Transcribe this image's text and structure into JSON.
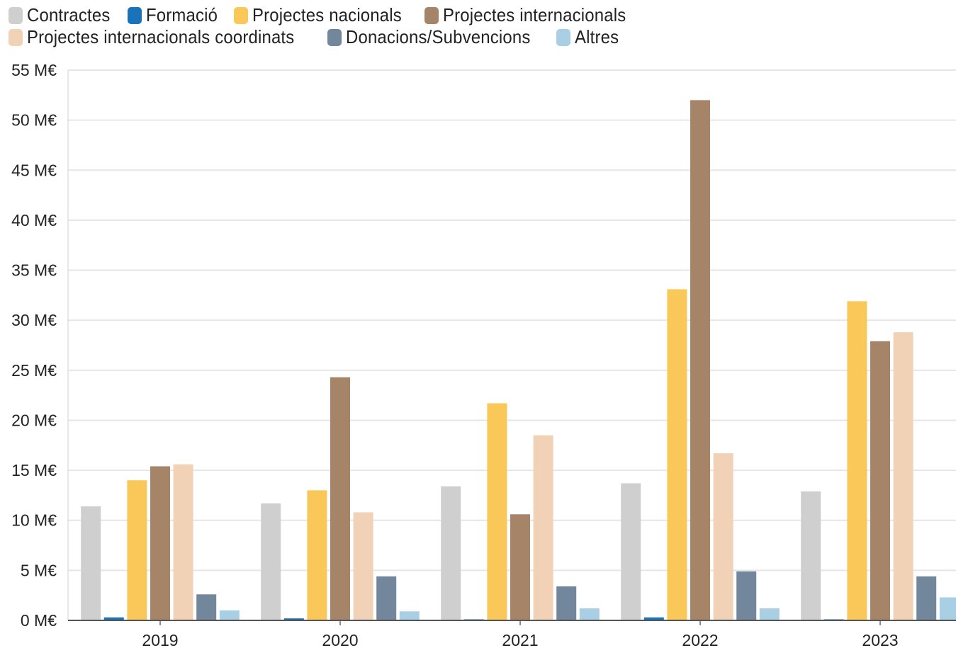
{
  "chart_data": {
    "type": "bar",
    "categories": [
      "2019",
      "2020",
      "2021",
      "2022",
      "2023"
    ],
    "series": [
      {
        "name": "Contractes",
        "color": "#cfcfcf",
        "values": [
          11.4,
          11.7,
          13.4,
          13.7,
          12.9
        ]
      },
      {
        "name": "Formació",
        "color": "#1a73b8",
        "values": [
          0.3,
          0.2,
          0.1,
          0.3,
          0.1
        ]
      },
      {
        "name": "Projectes nacionals",
        "color": "#f9c859",
        "values": [
          14.0,
          13.0,
          21.7,
          33.1,
          31.9
        ]
      },
      {
        "name": "Projectes internacionals",
        "color": "#a68468",
        "values": [
          15.4,
          24.3,
          10.6,
          52.0,
          27.9
        ]
      },
      {
        "name": "Projectes internacionals coordinats",
        "color": "#f1d2b7",
        "values": [
          15.6,
          10.8,
          18.5,
          16.7,
          28.8
        ]
      },
      {
        "name": "Donacions/Subvencions",
        "color": "#72879c",
        "values": [
          2.6,
          4.4,
          3.4,
          4.9,
          4.4
        ]
      },
      {
        "name": "Altres",
        "color": "#a9cfe5",
        "values": [
          1.0,
          0.9,
          1.2,
          1.2,
          2.3
        ]
      }
    ],
    "yticks": [
      "0 M€",
      "5 M€",
      "10 M€",
      "15 M€",
      "20 M€",
      "25 M€",
      "30 M€",
      "35 M€",
      "40 M€",
      "45 M€",
      "50 M€",
      "55 M€"
    ],
    "ylim": [
      0,
      55
    ],
    "grid": true,
    "legend_position": "top-left"
  }
}
